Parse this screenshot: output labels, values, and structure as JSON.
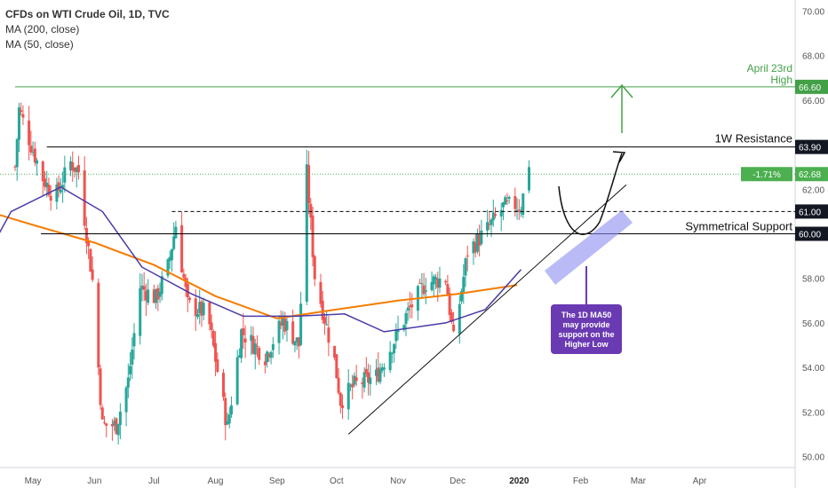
{
  "header": {
    "title": "CFDs on WTI Crude Oil, 1D, TVC",
    "ma200": "MA (200, close)",
    "ma50": "MA (50, close)"
  },
  "chart_data": {
    "type": "candlestick",
    "title": "CFDs on WTI Crude Oil, 1D, TVC",
    "ylim": [
      49.5,
      70.5
    ],
    "grid": false,
    "y_ticks": [
      "50.00",
      "52.00",
      "54.00",
      "56.00",
      "58.00",
      "60.00",
      "62.00",
      "64.00",
      "66.00",
      "68.00",
      "70.00"
    ],
    "x_ticks": [
      "May",
      "Jun",
      "Jul",
      "Aug",
      "Sep",
      "Oct",
      "Nov",
      "Dec",
      "2020",
      "Feb",
      "Mar",
      "Apr"
    ],
    "series": [
      {
        "name": "MA (200, close)",
        "color": "#f57c00",
        "points": [
          [
            "2019-04-01",
            61.2
          ],
          [
            "2019-05-01",
            60.4
          ],
          [
            "2019-06-01",
            59.6
          ],
          [
            "2019-07-01",
            58.6
          ],
          [
            "2019-08-01",
            57.2
          ],
          [
            "2019-09-01",
            56.2
          ],
          [
            "2019-10-01",
            56.6
          ],
          [
            "2019-11-01",
            57.0
          ],
          [
            "2019-12-01",
            57.3
          ],
          [
            "2019-12-31",
            57.7
          ]
        ]
      },
      {
        "name": "MA (50, close)",
        "color": "#4a3aa8",
        "points": [
          [
            "2019-04-01",
            57.9
          ],
          [
            "2019-04-20",
            61.0
          ],
          [
            "2019-05-15",
            62.1
          ],
          [
            "2019-06-05",
            61.0
          ],
          [
            "2019-06-25",
            58.5
          ],
          [
            "2019-07-20",
            57.3
          ],
          [
            "2019-08-15",
            56.3
          ],
          [
            "2019-09-10",
            56.3
          ],
          [
            "2019-10-05",
            56.4
          ],
          [
            "2019-10-25",
            55.6
          ],
          [
            "2019-11-25",
            56.0
          ],
          [
            "2019-12-15",
            56.6
          ],
          [
            "2020-01-02",
            58.4
          ]
        ]
      }
    ],
    "horizontal_levels": [
      {
        "label": "April 23rd High",
        "value": 66.6,
        "color": "#43a047",
        "style": "solid"
      },
      {
        "label": "1W Resistance",
        "value": 63.9,
        "color": "#000000",
        "style": "solid"
      },
      {
        "label": "",
        "value": 61.0,
        "color": "#000000",
        "style": "dashed"
      },
      {
        "label": "Symmetrical Support",
        "value": 60.0,
        "color": "#000000",
        "style": "solid"
      }
    ],
    "current_price": {
      "value": 62.68,
      "change": "-1.71%"
    },
    "annotations": [
      "The 1D MA50 may provide support on the Higher Low"
    ]
  },
  "colors": {
    "up": "#26a69a",
    "down": "#ef5350",
    "level_green": "#43a047",
    "callout": "#6a3ab2",
    "cur_price": "#4caf50"
  }
}
